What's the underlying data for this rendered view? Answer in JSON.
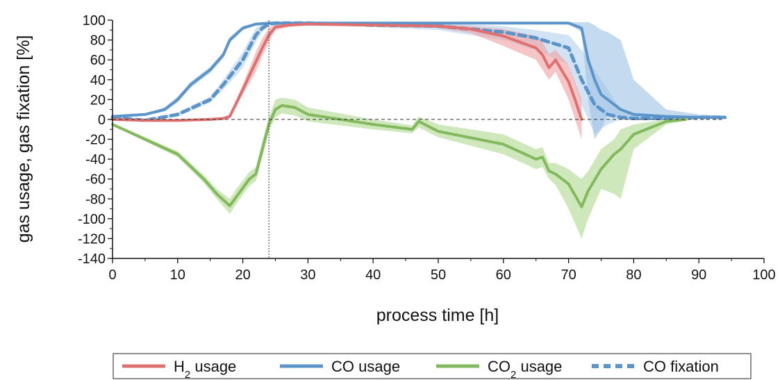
{
  "chart_data": {
    "type": "line",
    "xlabel": "process time [h]",
    "ylabel": "gas usage, gas fixation [%]",
    "xlim": [
      0,
      100
    ],
    "ylim": [
      -140,
      100
    ],
    "x_ticks": [
      "0",
      "10",
      "20",
      "30",
      "40",
      "50",
      "60",
      "70",
      "80",
      "90",
      "100"
    ],
    "y_ticks": [
      "100",
      "80",
      "60",
      "40",
      "20",
      "0",
      "-20",
      "-40",
      "-60",
      "-80",
      "-100",
      "-120",
      "-140"
    ],
    "grid": false,
    "zero_line": true,
    "vertical_marker_x": 24,
    "legend_placement": "bottom",
    "series": [
      {
        "key": "h2",
        "name": "H",
        "name_sub": "2",
        "name_suffix": " usage",
        "color": "#e07070",
        "band_color": "#f0a0a0",
        "style": "solid",
        "x": [
          0,
          5,
          10,
          15,
          17,
          18,
          20,
          22,
          23,
          24,
          25,
          27,
          30,
          40,
          50,
          55,
          60,
          65,
          66,
          67,
          68,
          70,
          71,
          72
        ],
        "y": [
          0,
          -1,
          -1,
          0,
          1,
          3,
          30,
          58,
          72,
          85,
          93,
          95,
          96,
          95,
          94,
          91,
          84,
          72,
          65,
          52,
          60,
          38,
          20,
          0
        ],
        "lower": [
          0,
          -2,
          -2,
          -1,
          0,
          1,
          25,
          48,
          64,
          78,
          90,
          93,
          95,
          94,
          92,
          87,
          74,
          60,
          50,
          40,
          48,
          20,
          0,
          -20
        ],
        "upper": [
          1,
          0,
          0,
          1,
          2,
          5,
          35,
          68,
          82,
          92,
          96,
          97,
          97,
          96,
          96,
          94,
          91,
          84,
          78,
          66,
          70,
          55,
          38,
          20
        ]
      },
      {
        "key": "co",
        "name": "CO usage",
        "color": "#5b94c8",
        "band_color": "#9cc2e5",
        "style": "solid",
        "x": [
          0,
          5,
          8,
          10,
          12,
          15,
          17,
          18,
          20,
          22,
          24,
          30,
          40,
          50,
          60,
          70,
          72,
          73,
          74,
          75,
          76,
          78,
          80,
          85,
          90,
          94
        ],
        "y": [
          3,
          5,
          10,
          20,
          35,
          50,
          65,
          80,
          92,
          96,
          97,
          97,
          97,
          97,
          97,
          97,
          92,
          60,
          40,
          25,
          20,
          10,
          5,
          3,
          2,
          2
        ],
        "lower": [
          2,
          4,
          8,
          17,
          32,
          47,
          62,
          77,
          90,
          95,
          96,
          96,
          96,
          96,
          96,
          96,
          88,
          20,
          -20,
          -10,
          5,
          2,
          0,
          1,
          1,
          1
        ],
        "upper": [
          4,
          6,
          12,
          23,
          38,
          53,
          68,
          83,
          94,
          97,
          98,
          98,
          98,
          98,
          98,
          98,
          98,
          98,
          95,
          90,
          88,
          80,
          40,
          10,
          5,
          4
        ]
      },
      {
        "key": "co2",
        "name": "CO",
        "name_sub": "2",
        "name_suffix": " usage",
        "color": "#82b95c",
        "band_color": "#aed88f",
        "style": "solid",
        "x": [
          0,
          5,
          10,
          14,
          16,
          18,
          19,
          21,
          22,
          23,
          24,
          25,
          26,
          28,
          30,
          40,
          46,
          47,
          50,
          60,
          65,
          66,
          67,
          68,
          70,
          72,
          73,
          75,
          77,
          78,
          80,
          85,
          88
        ],
        "y": [
          -5,
          -20,
          -35,
          -60,
          -75,
          -87,
          -78,
          -60,
          -55,
          -30,
          -5,
          10,
          14,
          12,
          5,
          -5,
          -10,
          -2,
          -12,
          -25,
          -40,
          -38,
          -52,
          -55,
          -65,
          -88,
          -72,
          -50,
          -35,
          -30,
          -15,
          -2,
          0
        ],
        "lower": [
          -6,
          -22,
          -38,
          -64,
          -80,
          -95,
          -85,
          -67,
          -62,
          -38,
          -12,
          2,
          6,
          4,
          -2,
          -10,
          -14,
          -8,
          -18,
          -35,
          -50,
          -48,
          -60,
          -66,
          -90,
          -120,
          -100,
          -70,
          -75,
          -80,
          -30,
          -5,
          -1
        ],
        "upper": [
          -4,
          -18,
          -32,
          -56,
          -70,
          -80,
          -70,
          -53,
          -48,
          -22,
          2,
          20,
          22,
          20,
          12,
          0,
          -6,
          3,
          -5,
          -15,
          -30,
          -28,
          -44,
          -44,
          -50,
          -60,
          -52,
          -30,
          -20,
          -10,
          -5,
          0,
          1
        ]
      },
      {
        "key": "cofix",
        "name": "CO fixation",
        "color": "#5b94c8",
        "band_color": "#9cc2e5",
        "style": "dashed",
        "x": [
          0,
          5,
          10,
          15,
          17,
          20,
          22,
          23,
          24,
          25,
          30,
          40,
          50,
          60,
          65,
          70,
          72,
          74,
          76,
          78,
          80,
          85,
          90,
          94
        ],
        "y": [
          2,
          -1,
          5,
          20,
          35,
          60,
          85,
          92,
          96,
          97,
          97,
          95,
          94,
          88,
          82,
          72,
          40,
          15,
          5,
          2,
          1,
          1,
          2,
          2
        ],
        "lower": [
          1,
          -2,
          3,
          17,
          30,
          52,
          78,
          88,
          95,
          96,
          96,
          93,
          90,
          80,
          70,
          55,
          15,
          -15,
          -5,
          0,
          0,
          0,
          1,
          1
        ],
        "upper": [
          3,
          0,
          7,
          23,
          40,
          68,
          92,
          96,
          98,
          98,
          98,
          97,
          97,
          94,
          90,
          85,
          70,
          50,
          30,
          10,
          5,
          3,
          4,
          4
        ]
      }
    ]
  }
}
